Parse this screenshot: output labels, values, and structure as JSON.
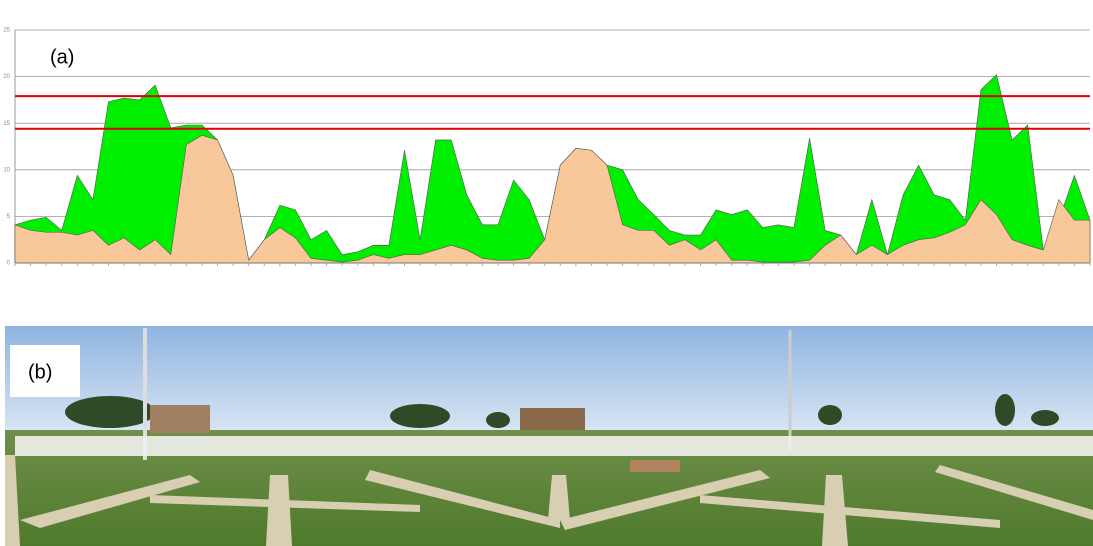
{
  "chart_data": {
    "type": "area",
    "panel_label": "(a)",
    "categories": [
      null,
      null,
      null,
      null,
      null,
      null,
      null,
      null,
      null,
      null,
      null,
      null,
      null,
      null,
      null,
      null,
      null,
      null,
      null,
      null,
      null,
      null,
      null,
      null,
      null,
      null,
      null,
      null,
      null,
      null,
      null,
      null,
      null,
      null,
      null,
      null,
      null,
      null,
      null,
      null,
      null,
      null,
      null,
      null,
      null,
      null,
      null,
      null,
      null,
      null,
      null,
      null,
      null,
      null,
      null,
      null,
      null,
      null,
      null,
      null,
      null,
      null,
      null,
      null,
      null,
      null,
      null,
      null,
      null,
      null
    ],
    "series": [
      {
        "color": "#00ee00",
        "values": [
          4.1,
          4.6,
          4.9,
          3.5,
          9.4,
          6.8,
          17.3,
          17.7,
          17.5,
          19.1,
          14.5,
          14.8,
          14.8,
          13.2,
          9.4,
          0.3,
          2.5,
          6.2,
          5.7,
          2.5,
          3.5,
          0.9,
          1.2,
          1.9,
          1.9,
          12.1,
          2.5,
          13.2,
          13.2,
          7.3,
          4.1,
          4.1,
          8.9,
          6.8,
          2.5,
          10.5,
          12.3,
          12.1,
          10.5,
          10.0,
          6.8,
          5.2,
          3.5,
          3.0,
          3.0,
          5.7,
          5.2,
          5.7,
          3.8,
          4.1,
          3.8,
          13.4,
          3.5,
          3.0,
          0.9,
          6.8,
          0.9,
          7.3,
          10.5,
          7.3,
          6.8,
          4.6,
          18.6,
          20.2,
          13.2,
          14.8,
          1.4,
          4.6,
          9.4,
          4.6
        ]
      },
      {
        "color": "#f8c89a",
        "values": [
          4.1,
          3.5,
          3.3,
          3.3,
          3.0,
          3.5,
          1.9,
          2.7,
          1.4,
          2.5,
          0.9,
          12.7,
          13.7,
          13.2,
          9.4,
          0.3,
          2.5,
          3.8,
          2.7,
          0.5,
          0.3,
          0.1,
          0.3,
          0.9,
          0.5,
          0.9,
          0.9,
          1.4,
          1.9,
          1.4,
          0.5,
          0.3,
          0.3,
          0.5,
          2.5,
          10.5,
          12.3,
          12.1,
          10.5,
          4.1,
          3.5,
          3.5,
          1.9,
          2.5,
          1.4,
          2.5,
          0.3,
          0.3,
          0.1,
          0.1,
          0.1,
          0.3,
          1.9,
          3.0,
          0.9,
          1.9,
          0.9,
          1.9,
          2.5,
          2.7,
          3.3,
          4.1,
          6.8,
          5.2,
          2.5,
          1.9,
          1.4,
          6.8,
          4.6,
          4.6
        ]
      }
    ],
    "ylim": [
      0,
      25
    ],
    "yticks": [
      0,
      5,
      10,
      15,
      20,
      25
    ],
    "grid": true,
    "reference_lines": [
      {
        "value": 17.9,
        "color": "#e00000"
      },
      {
        "value": 14.4,
        "color": "#e00000"
      }
    ]
  },
  "photo": {
    "label": "(b)"
  }
}
